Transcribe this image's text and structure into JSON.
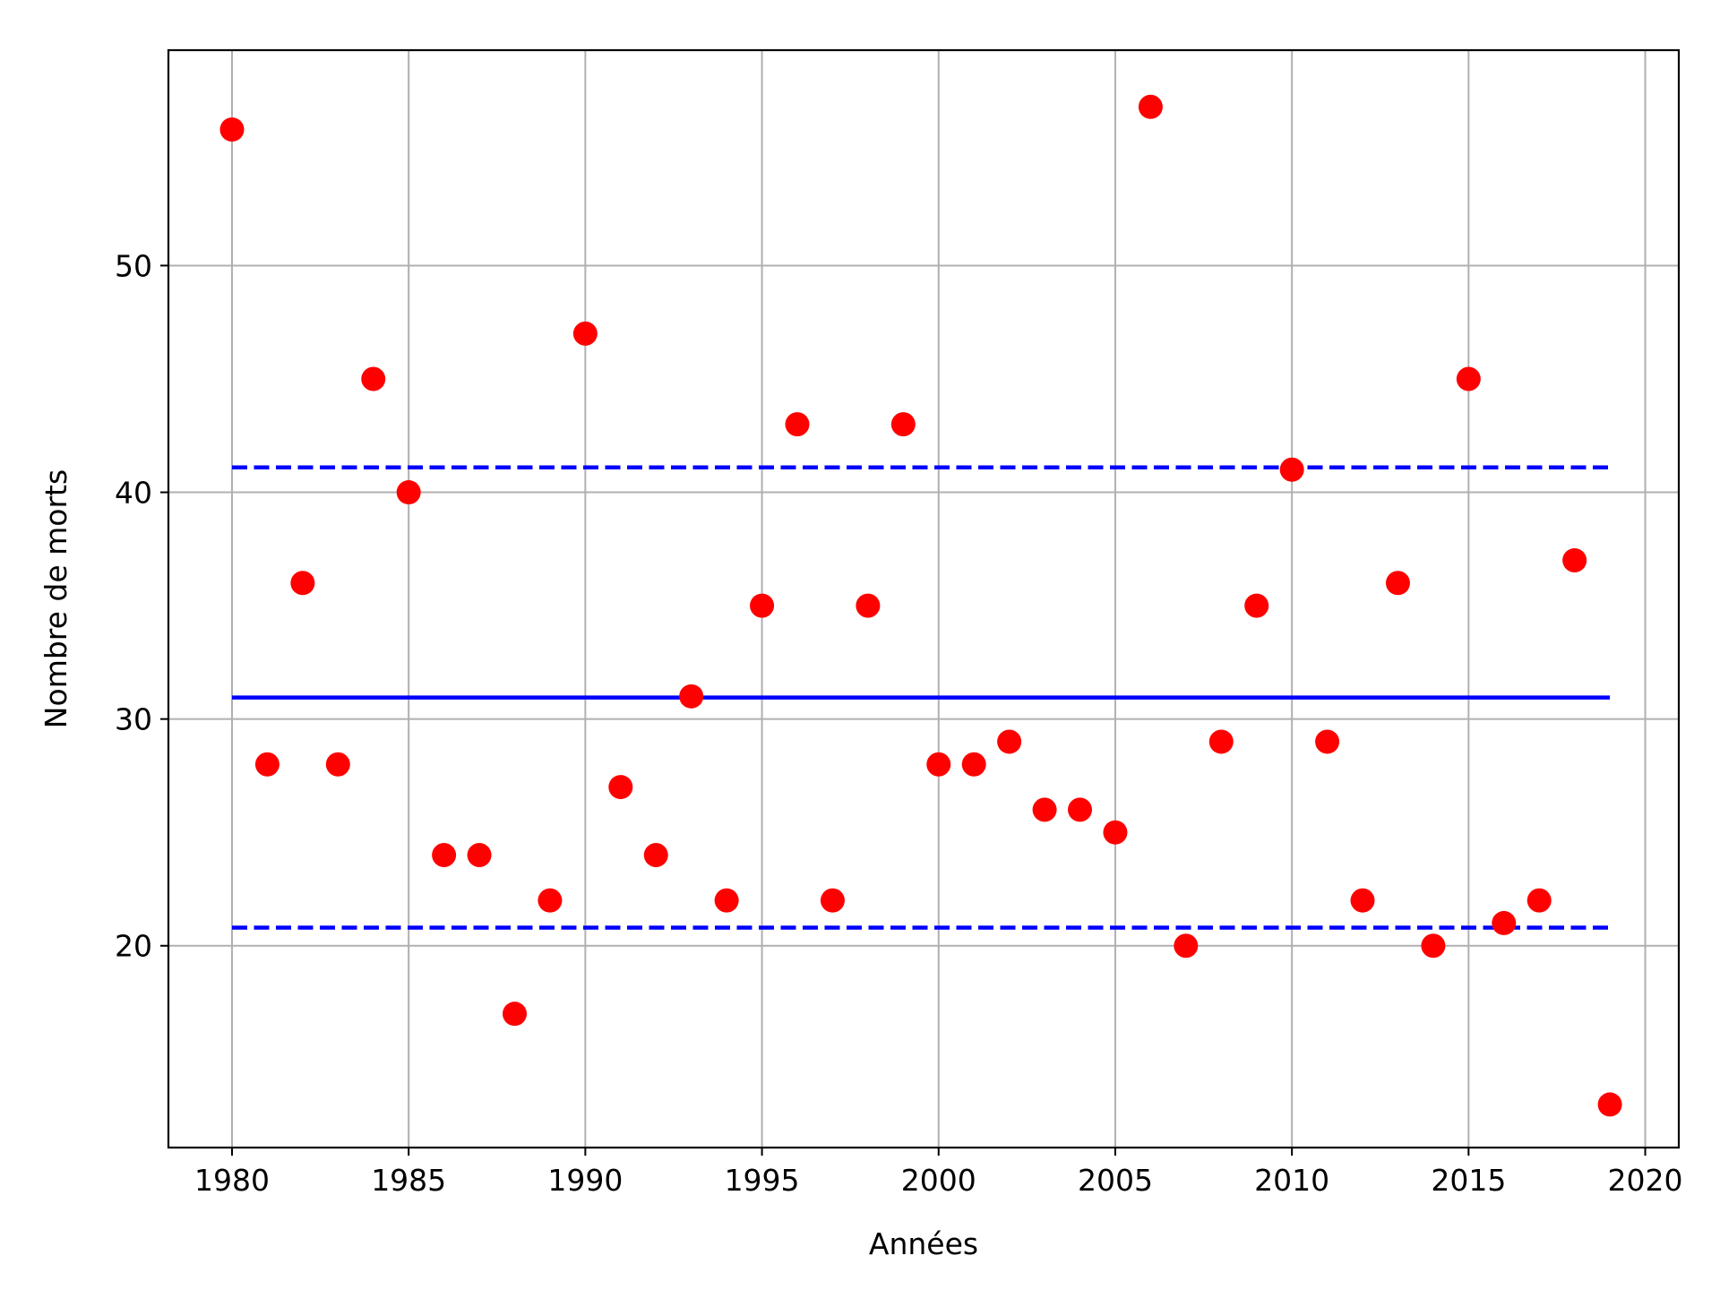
{
  "chart_data": {
    "type": "scatter",
    "xlabel": "Années",
    "ylabel": "Nombre de morts",
    "xlim": [
      1978.2,
      2020.95
    ],
    "ylim": [
      11.1,
      59.5
    ],
    "xticks": [
      1980,
      1985,
      1990,
      1995,
      2000,
      2005,
      2010,
      2015,
      2020
    ],
    "yticks": [
      20,
      30,
      40,
      50
    ],
    "grid": true,
    "colors": {
      "points": "#ff0000",
      "lines": "#0000ff",
      "grid": "#b0b0b0"
    },
    "series": [
      {
        "kind": "scatter",
        "x": [
          1980,
          1981,
          1982,
          1983,
          1984,
          1985,
          1986,
          1987,
          1988,
          1989,
          1990,
          1991,
          1992,
          1993,
          1994,
          1995,
          1996,
          1997,
          1998,
          1999,
          2000,
          2001,
          2002,
          2003,
          2004,
          2005,
          2006,
          2007,
          2008,
          2009,
          2010,
          2011,
          2012,
          2013,
          2014,
          2015,
          2016,
          2017,
          2018,
          2019
        ],
        "y": [
          56,
          28,
          36,
          28,
          45,
          40,
          24,
          24,
          17,
          22,
          47,
          27,
          24,
          31,
          22,
          35,
          43,
          22,
          35,
          43,
          28,
          28,
          29,
          26,
          26,
          25,
          57,
          20,
          29,
          35,
          41,
          29,
          22,
          36,
          20,
          45,
          21,
          22,
          37,
          13
        ]
      },
      {
        "kind": "line",
        "style": "solid",
        "x": [
          1980,
          2019
        ],
        "y": [
          30.95,
          30.95
        ]
      },
      {
        "kind": "line",
        "style": "dashed",
        "x": [
          1980,
          2019
        ],
        "y": [
          41.1,
          41.1
        ]
      },
      {
        "kind": "line",
        "style": "dashed",
        "x": [
          1980,
          2019
        ],
        "y": [
          20.8,
          20.8
        ]
      }
    ]
  }
}
